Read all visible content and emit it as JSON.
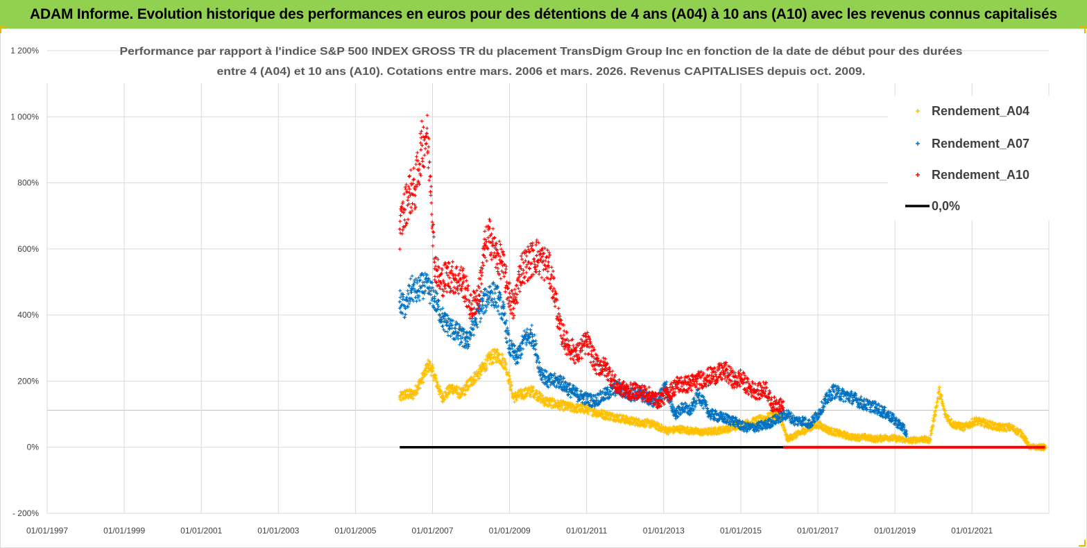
{
  "banner": {
    "title": "ADAM Informe. Evolution historique des performances en euros pour des détentions de 4 ans (A04) à 10 ans (A10) avec les revenus connus capitalisés"
  },
  "colors": {
    "banner_bg": "#92d050",
    "a04": "#ffc000",
    "a07": "#0070c0",
    "a10": "#ff0000",
    "zero": "#000000",
    "grid": "#d9d9d9"
  },
  "chart_data": {
    "type": "scatter",
    "title_line1": "Performance par rapport à l'indice S&P 500 INDEX GROSS TR  du placement TransDigm Group Inc en fonction de la date de début pour des durées",
    "title_line2": "entre 4 (A04) et 10 ans (A10). Cotations entre mars. 2006 et mars. 2026. Revenus CAPITALISES depuis oct. 2009.",
    "xlabel": "",
    "ylabel": "",
    "x_range": [
      1997.0,
      2022.9
    ],
    "ylim": [
      -200,
      1200
    ],
    "y_ticks": [
      -200,
      0,
      200,
      400,
      600,
      800,
      1000,
      1200
    ],
    "y_tick_labels": [
      "- 200%",
      "0%",
      "200%",
      "400%",
      "600%",
      "800%",
      "1 000%",
      "1 200%"
    ],
    "x_ticks": [
      1997,
      1999,
      2001,
      2003,
      2005,
      2007,
      2009,
      2011,
      2013,
      2015,
      2017,
      2019,
      2021
    ],
    "x_tick_labels": [
      "01/01/1997",
      "01/01/1999",
      "01/01/2001",
      "01/01/2003",
      "01/01/2005",
      "01/01/2007",
      "01/01/2009",
      "01/01/2011",
      "01/01/2013",
      "01/01/2015",
      "01/01/2017",
      "01/01/2019",
      "01/01/2021"
    ],
    "extra_hline": 112,
    "legend_position": "top-right",
    "series": [
      {
        "name": "Rendement_A04",
        "x": [
          2006.15,
          2006.3,
          2006.5,
          2006.75,
          2006.9,
          2007.0,
          2007.25,
          2007.5,
          2007.75,
          2008.0,
          2008.25,
          2008.5,
          2008.7,
          2008.9,
          2009.1,
          2009.3,
          2009.6,
          2009.9,
          2010.2,
          2010.6,
          2011.0,
          2011.4,
          2011.8,
          2012.1,
          2012.4,
          2012.7,
          2012.9,
          2013.1,
          2013.4,
          2013.7,
          2014.0,
          2014.4,
          2014.8,
          2015.1,
          2015.4,
          2015.7,
          2016.0,
          2016.2,
          2016.5,
          2016.8,
          2017.0,
          2017.3,
          2017.6,
          2017.9,
          2018.2,
          2018.5,
          2018.8,
          2019.1,
          2019.4,
          2019.7,
          2019.9,
          2020.05,
          2020.15,
          2020.3,
          2020.5,
          2020.8,
          2021.1,
          2021.4,
          2021.7,
          2022.0,
          2022.3,
          2022.5,
          2022.7,
          2022.9
        ],
        "y": [
          150,
          160,
          160,
          210,
          250,
          230,
          150,
          180,
          160,
          200,
          230,
          270,
          280,
          250,
          150,
          160,
          170,
          140,
          130,
          120,
          115,
          100,
          90,
          80,
          75,
          70,
          60,
          50,
          55,
          50,
          45,
          50,
          60,
          70,
          80,
          90,
          100,
          25,
          40,
          60,
          70,
          50,
          40,
          30,
          30,
          25,
          30,
          25,
          20,
          25,
          20,
          110,
          170,
          100,
          70,
          60,
          80,
          70,
          60,
          60,
          40,
          0,
          0,
          0
        ]
      },
      {
        "name": "Rendement_A07",
        "x": [
          2006.15,
          2006.3,
          2006.45,
          2006.6,
          2006.75,
          2006.9,
          2007.05,
          2007.3,
          2007.6,
          2007.9,
          2008.1,
          2008.3,
          2008.5,
          2008.7,
          2008.85,
          2009.0,
          2009.2,
          2009.4,
          2009.6,
          2009.8,
          2010.0,
          2010.3,
          2010.6,
          2010.9,
          2011.2,
          2011.5,
          2011.8,
          2012.1,
          2012.4,
          2012.7,
          2012.9,
          2013.05,
          2013.15,
          2013.3,
          2013.5,
          2013.7,
          2013.9,
          2014.2,
          2014.5,
          2014.8,
          2015.1,
          2015.4,
          2015.7,
          2016.0,
          2016.2,
          2016.4,
          2016.6,
          2016.8,
          2017.0,
          2017.2,
          2017.4,
          2017.6,
          2017.9,
          2018.2,
          2018.5,
          2018.8,
          2019.0,
          2019.2,
          2019.3
        ],
        "y": [
          440,
          420,
          480,
          470,
          490,
          480,
          450,
          380,
          350,
          320,
          380,
          430,
          470,
          450,
          400,
          300,
          270,
          330,
          340,
          230,
          200,
          200,
          170,
          150,
          140,
          160,
          180,
          160,
          160,
          140,
          150,
          190,
          140,
          100,
          120,
          110,
          160,
          100,
          90,
          80,
          60,
          60,
          70,
          90,
          100,
          80,
          80,
          70,
          100,
          140,
          170,
          160,
          150,
          130,
          120,
          100,
          80,
          60,
          40
        ]
      },
      {
        "name": "Rendement_A10",
        "x": [
          2006.15,
          2006.25,
          2006.4,
          2006.55,
          2006.7,
          2006.85,
          2006.95,
          2007.05,
          2007.2,
          2007.4,
          2007.6,
          2007.8,
          2008.0,
          2008.2,
          2008.35,
          2008.5,
          2008.65,
          2008.8,
          2008.95,
          2009.1,
          2009.3,
          2009.5,
          2009.7,
          2009.85,
          2010.0,
          2010.15,
          2010.3,
          2010.5,
          2010.75,
          2011.0,
          2011.25,
          2011.5,
          2011.8,
          2012.1,
          2012.35,
          2012.6,
          2012.85,
          2013.1,
          2013.35,
          2013.6,
          2013.85,
          2014.1,
          2014.35,
          2014.6,
          2014.85,
          2015.0,
          2015.2,
          2015.4,
          2015.55,
          2015.65,
          2015.8,
          2016.0,
          2016.1
        ],
        "y": [
          660,
          710,
          770,
          780,
          900,
          950,
          820,
          560,
          500,
          520,
          510,
          500,
          420,
          460,
          600,
          640,
          580,
          560,
          480,
          420,
          540,
          560,
          580,
          560,
          550,
          480,
          360,
          310,
          280,
          320,
          250,
          240,
          180,
          170,
          170,
          160,
          140,
          160,
          190,
          190,
          200,
          210,
          220,
          230,
          200,
          210,
          180,
          170,
          170,
          180,
          130,
          130,
          120
        ]
      },
      {
        "name": "0,0%",
        "x": [
          2006.15,
          2022.9
        ],
        "y": [
          0,
          0
        ]
      }
    ]
  },
  "legend": {
    "items": [
      "Rendement_A04",
      "Rendement_A07",
      "Rendement_A10",
      "0,0%"
    ]
  }
}
